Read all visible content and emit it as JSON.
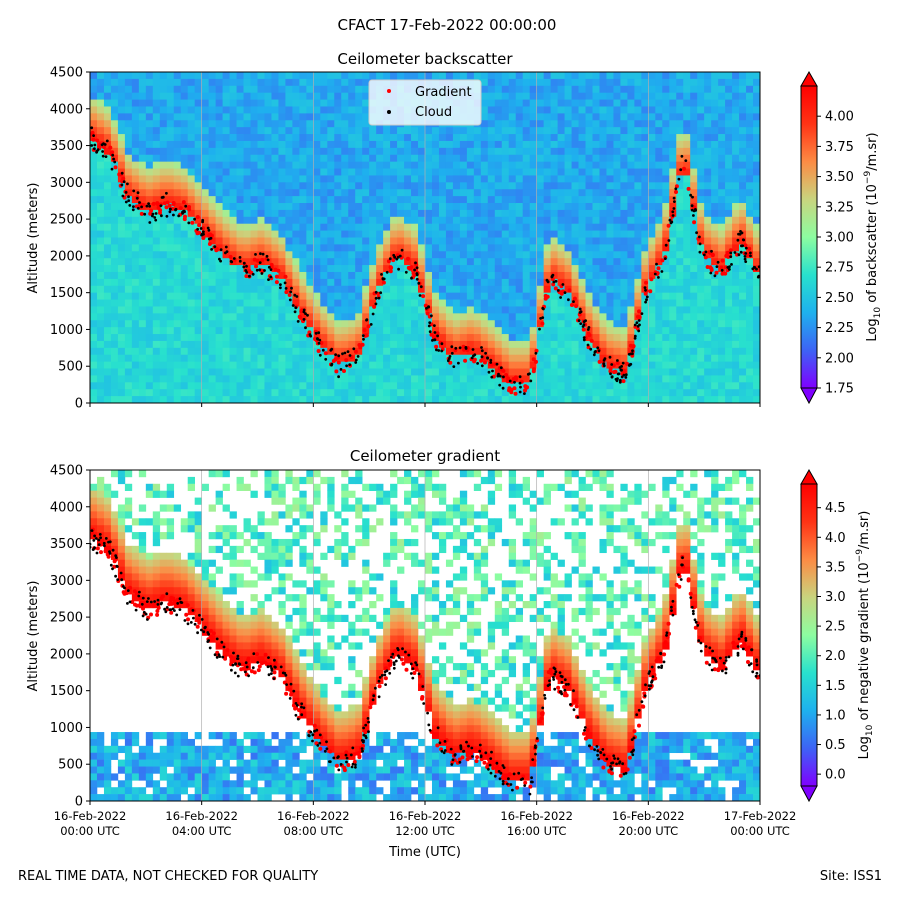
{
  "figure": {
    "suptitle": "CFACT 17-Feb-2022 00:00:00",
    "footer_left": "REAL TIME DATA, NOT CHECKED FOR QUALITY",
    "footer_right": "Site: ISS1"
  },
  "colors": {
    "gradient_marker": "#ff0000",
    "cloud_marker": "#000000",
    "colormap": [
      "#7f00ff",
      "#3d63f5",
      "#1eb1ee",
      "#28e1cd",
      "#8dfda0",
      "#c9d47e",
      "#fc8b44",
      "#ff3315",
      "#ff0000"
    ]
  },
  "chart_data": [
    {
      "type": "heatmap",
      "title": "Ceilometer backscatter",
      "ylabel": "Altitude (meters)",
      "xlabel": "",
      "ylim": [
        0,
        4500
      ],
      "yticks": [
        "0",
        "500",
        "1000",
        "1500",
        "2000",
        "2500",
        "3000",
        "3500",
        "4000",
        "4500"
      ],
      "xtick_labels": [],
      "legend": {
        "placement": "top-center",
        "entries": [
          "Gradient",
          "Cloud"
        ]
      },
      "colorbar": {
        "label": "Log10 of backscatter (10^-9/m.sr)",
        "label_main": "Log",
        "label_sub": "10",
        "label_mid": " of backscatter (10",
        "label_sup": "−9",
        "label_end": "/m.sr)",
        "range": [
          1.75,
          4.25
        ],
        "ticks": [
          "1.75",
          "2.00",
          "2.25",
          "2.50",
          "2.75",
          "3.00",
          "3.25",
          "3.50",
          "3.75",
          "4.00"
        ],
        "tick_values": [
          1.75,
          2.0,
          2.25,
          2.5,
          2.75,
          3.0,
          3.25,
          3.5,
          3.75,
          4.0
        ],
        "extend": "both"
      },
      "gradient_layer_altitude_m": [
        3600,
        3400,
        2800,
        2600,
        2700,
        2600,
        2300,
        2000,
        1800,
        1900,
        1700,
        1200,
        800,
        500,
        600,
        1500,
        2000,
        1800,
        900,
        600,
        700,
        500,
        250,
        250,
        1700,
        1500,
        900,
        500,
        400,
        1500,
        2000,
        3300,
        2000,
        1800,
        2200,
        1700
      ]
    },
    {
      "type": "heatmap",
      "title": "Ceilometer gradient",
      "ylabel": "Altitude (meters)",
      "xlabel": "Time (UTC)",
      "ylim": [
        0,
        4500
      ],
      "yticks": [
        "0",
        "500",
        "1000",
        "1500",
        "2000",
        "2500",
        "3000",
        "3500",
        "4000",
        "4500"
      ],
      "xtick_labels": [
        [
          "16-Feb-2022",
          "00:00 UTC"
        ],
        [
          "16-Feb-2022",
          "04:00 UTC"
        ],
        [
          "16-Feb-2022",
          "08:00 UTC"
        ],
        [
          "16-Feb-2022",
          "12:00 UTC"
        ],
        [
          "16-Feb-2022",
          "16:00 UTC"
        ],
        [
          "16-Feb-2022",
          "20:00 UTC"
        ],
        [
          "17-Feb-2022",
          "00:00 UTC"
        ]
      ],
      "colorbar": {
        "label": "Log10 of negative gradient (10^-9/m.sr)",
        "label_main": "Log",
        "label_sub": "10",
        "label_mid": " of negative gradient (10",
        "label_sup": "−9",
        "label_end": "/m.sr)",
        "range": [
          -0.2,
          4.9
        ],
        "ticks": [
          "0.0",
          "0.5",
          "1.0",
          "1.5",
          "2.0",
          "2.5",
          "3.0",
          "3.5",
          "4.0",
          "4.5"
        ],
        "tick_values": [
          0.0,
          0.5,
          1.0,
          1.5,
          2.0,
          2.5,
          3.0,
          3.5,
          4.0,
          4.5
        ],
        "extend": "both"
      },
      "gradient_layer_altitude_m": [
        3600,
        3400,
        2800,
        2600,
        2700,
        2600,
        2300,
        2000,
        1800,
        1900,
        1700,
        1200,
        800,
        500,
        600,
        1500,
        2000,
        1800,
        900,
        600,
        700,
        500,
        250,
        250,
        1700,
        1500,
        900,
        500,
        400,
        1500,
        2000,
        3300,
        2000,
        1800,
        2200,
        1700
      ]
    }
  ]
}
